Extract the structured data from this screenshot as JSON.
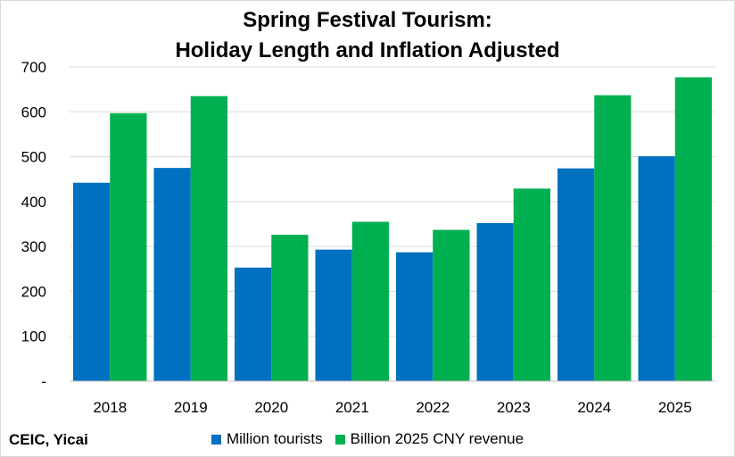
{
  "chart_data": {
    "type": "bar",
    "title_line1": "Spring Festival Tourism:",
    "title_line2": "Holiday Length and Inflation Adjusted",
    "categories": [
      "2018",
      "2019",
      "2020",
      "2021",
      "2022",
      "2023",
      "2024",
      "2025"
    ],
    "series": [
      {
        "name": "Million tourists",
        "color": "#0070c0",
        "values": [
          442,
          475,
          253,
          293,
          287,
          352,
          474,
          501
        ]
      },
      {
        "name": "Billion 2025 CNY revenue",
        "color": "#00b050",
        "values": [
          597,
          635,
          326,
          355,
          337,
          429,
          637,
          677
        ]
      }
    ],
    "ylim": [
      0,
      700
    ],
    "yticks": [
      {
        "value": 0,
        "label": "-"
      },
      {
        "value": 100,
        "label": "100"
      },
      {
        "value": 200,
        "label": "200"
      },
      {
        "value": 300,
        "label": "300"
      },
      {
        "value": 400,
        "label": "400"
      },
      {
        "value": 500,
        "label": "500"
      },
      {
        "value": 600,
        "label": "600"
      },
      {
        "value": 700,
        "label": "700"
      }
    ],
    "grid": true,
    "legend_position": "bottom",
    "source": "CEIC, Yicai"
  }
}
